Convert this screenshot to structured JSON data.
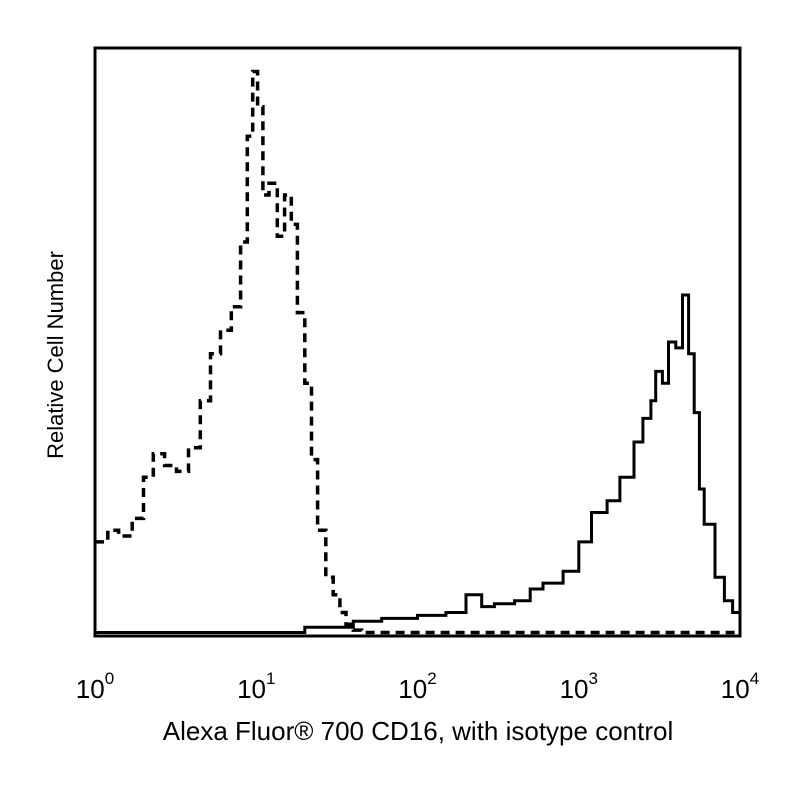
{
  "chart_data": {
    "type": "line",
    "xlabel": "Alexa Fluor® 700 CD16, with isotype control",
    "ylabel": "Relative Cell Number",
    "x_scale": "log",
    "xlim": [
      1,
      10000
    ],
    "ylim": [
      0,
      100
    ],
    "x_ticks": [
      {
        "base": "10",
        "exp": "0",
        "value": 1
      },
      {
        "base": "10",
        "exp": "1",
        "value": 10
      },
      {
        "base": "10",
        "exp": "2",
        "value": 100
      },
      {
        "base": "10",
        "exp": "3",
        "value": 1000
      },
      {
        "base": "10",
        "exp": "4",
        "value": 10000
      }
    ],
    "grid": false,
    "legend": "none",
    "series": [
      {
        "style": "dashed",
        "x": [
          1,
          1.2,
          1.4,
          1.7,
          2.0,
          2.3,
          2.7,
          3.2,
          3.8,
          4.5,
          5.2,
          6.0,
          7.0,
          8.0,
          8.8,
          9.5,
          10.2,
          11,
          12,
          13.5,
          15,
          16.5,
          18,
          20,
          22,
          24,
          27,
          30,
          33,
          36,
          40,
          45,
          55,
          80,
          150,
          300,
          1000,
          10000
        ],
        "y": [
          16,
          18,
          17,
          20,
          27,
          31,
          29,
          28,
          32,
          40,
          48,
          52,
          56,
          67,
          85,
          96,
          90,
          75,
          77,
          68,
          75,
          70,
          55,
          43,
          30,
          18,
          10,
          7,
          4,
          2,
          1,
          0.6,
          0.6,
          0.6,
          0.6,
          0.6,
          0.6,
          0.6
        ]
      },
      {
        "style": "solid",
        "x": [
          1,
          10,
          20,
          40,
          60,
          100,
          150,
          200,
          250,
          300,
          400,
          500,
          600,
          800,
          1000,
          1200,
          1500,
          1800,
          2200,
          2500,
          2800,
          3000,
          3300,
          3600,
          4000,
          4400,
          4800,
          5200,
          5600,
          6000,
          7000,
          8000,
          9000,
          10000
        ],
        "y": [
          0.6,
          0.6,
          1.5,
          2.5,
          3,
          3.5,
          4,
          7,
          5,
          5.5,
          6,
          8,
          9,
          11,
          16,
          21,
          23,
          27,
          33,
          37,
          40,
          45,
          43,
          50,
          49,
          58,
          48,
          38,
          25,
          19,
          10,
          6,
          4,
          5
        ]
      }
    ]
  }
}
